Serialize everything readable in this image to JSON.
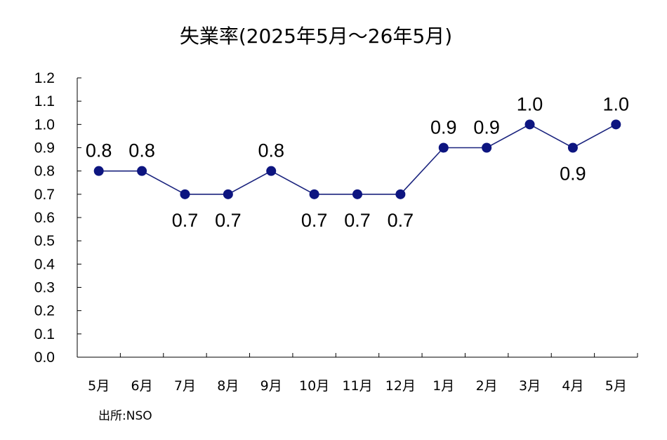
{
  "chart_data": {
    "type": "line",
    "title": "失業率(2025年5月～26年5月)",
    "source": "出所:NSO",
    "categories": [
      "5月",
      "6月",
      "7月",
      "8月",
      "9月",
      "10月",
      "11月",
      "12月",
      "1月",
      "2月",
      "3月",
      "4月",
      "5月"
    ],
    "series": [
      {
        "values": [
          0.8,
          0.8,
          0.7,
          0.7,
          0.8,
          0.7,
          0.7,
          0.7,
          0.9,
          0.9,
          1.0,
          0.9,
          1.0
        ],
        "data_labels": [
          "0.8",
          "0.8",
          "0.7",
          "0.7",
          "0.8",
          "0.7",
          "0.7",
          "0.7",
          "0.9",
          "0.9",
          "1.0",
          "0.9",
          "1.0"
        ]
      }
    ],
    "ylim": [
      0,
      1.2
    ],
    "yticks": [
      "0.0",
      "0.1",
      "0.2",
      "0.3",
      "0.4",
      "0.5",
      "0.6",
      "0.7",
      "0.8",
      "0.9",
      "1.0",
      "1.1",
      "1.2"
    ],
    "grid": false,
    "legend": "none",
    "colors": {
      "line": "#1a237e",
      "marker": "#0d1580",
      "axis": "#000000"
    }
  }
}
